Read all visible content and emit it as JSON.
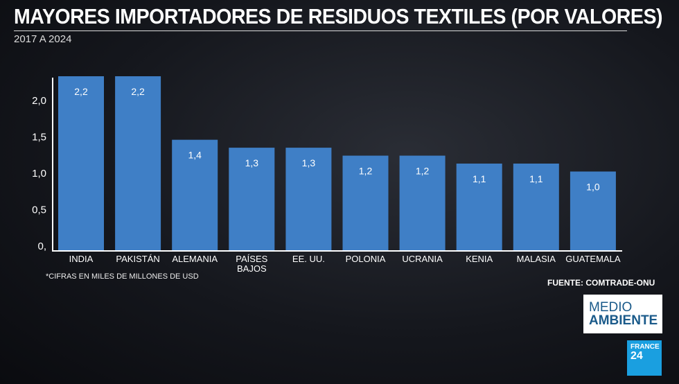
{
  "chart_data": {
    "type": "bar",
    "title": "MAYORES IMPORTADORES DE RESIDUOS TEXTILES (POR VALORES)",
    "subtitle": "2017 A 2024",
    "categories": [
      "INDIA",
      "PAKISTÁN",
      "ALEMANIA",
      "PAÍSES BAJOS",
      "EE. UU.",
      "POLONIA",
      "UCRANIA",
      "KENIA",
      "MALASIA",
      "GUATEMALA"
    ],
    "values": [
      2.2,
      2.2,
      1.4,
      1.3,
      1.3,
      1.2,
      1.2,
      1.1,
      1.1,
      1.0
    ],
    "data_labels": [
      "2,2",
      "2,2",
      "1,4",
      "1,3",
      "1,3",
      "1,2",
      "1,2",
      "1,1",
      "1,1",
      "1,0"
    ],
    "yticks": [
      0,
      0.5,
      1.0,
      1.5,
      2.0
    ],
    "ytick_labels": [
      "0,",
      "0,5",
      "1,0",
      "1,5",
      "2,0"
    ],
    "ylim": [
      0,
      2.2
    ],
    "grid": false,
    "bar_color": "#3f7fc6",
    "xlabel": "",
    "ylabel": ""
  },
  "note": "*CIFRAS EN MILES DE MILLONES DE USD",
  "source": "FUENTE: COMTRADE-ONU",
  "badge": {
    "line1": "MEDIO",
    "line2": "AMBIENTE"
  },
  "logo": {
    "line1": "FRANCE",
    "line2": "24"
  }
}
